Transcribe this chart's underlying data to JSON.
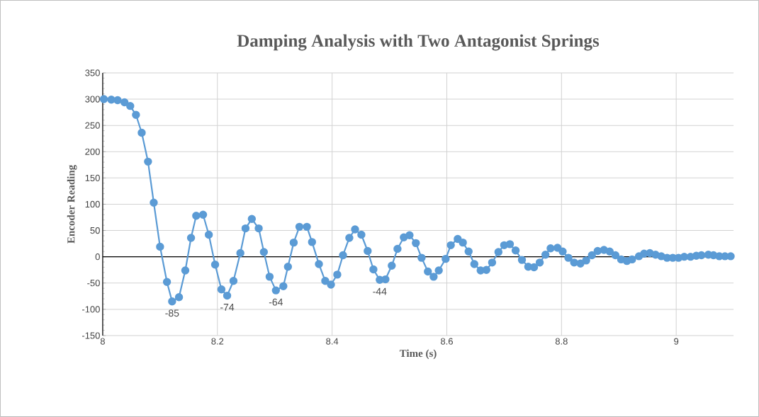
{
  "chart_data": {
    "type": "line",
    "title": "Damping Analysis with Two Antagonist Springs",
    "xlabel": "Time (s)",
    "ylabel": "Encoder Reading",
    "xlim": [
      8,
      9.1
    ],
    "xticks": [
      8,
      8.2,
      8.4,
      8.6,
      8.8,
      9
    ],
    "ylim": [
      -150,
      350
    ],
    "yticks": [
      -150,
      -100,
      -50,
      0,
      50,
      100,
      150,
      200,
      250,
      300,
      350
    ],
    "grid": true,
    "marker": "circle",
    "line_style": "solid",
    "series": [
      {
        "color": "#5b9bd5",
        "x": [
          8.002,
          8.015,
          8.026,
          8.038,
          8.048,
          8.058,
          8.068,
          8.079,
          8.089,
          8.1,
          8.112,
          8.121,
          8.133,
          8.144,
          8.154,
          8.163,
          8.175,
          8.185,
          8.196,
          8.207,
          8.217,
          8.228,
          8.24,
          8.249,
          8.26,
          8.272,
          8.281,
          8.291,
          8.302,
          8.315,
          8.323,
          8.333,
          8.343,
          8.356,
          8.365,
          8.377,
          8.388,
          8.398,
          8.409,
          8.419,
          8.43,
          8.44,
          8.451,
          8.462,
          8.472,
          8.483,
          8.493,
          8.504,
          8.514,
          8.525,
          8.535,
          8.546,
          8.556,
          8.567,
          8.577,
          8.586,
          8.598,
          8.607,
          8.619,
          8.628,
          8.638,
          8.648,
          8.659,
          8.669,
          8.679,
          8.69,
          8.7,
          8.71,
          8.72,
          8.731,
          8.742,
          8.752,
          8.762,
          8.772,
          8.781,
          8.793,
          8.802,
          8.812,
          8.822,
          8.833,
          8.843,
          8.853,
          8.863,
          8.874,
          8.884,
          8.894,
          8.904,
          8.914,
          8.923,
          8.935,
          8.944,
          8.954,
          8.964,
          8.974,
          8.984,
          8.994,
          9.004,
          9.014,
          9.025,
          9.035,
          9.044,
          9.056,
          9.065,
          9.075,
          9.085,
          9.095
        ],
        "values": [
          300,
          299,
          298,
          294,
          287,
          270,
          236,
          181,
          103,
          19,
          -48,
          -85,
          -77,
          -26,
          36,
          78,
          80,
          42,
          -15,
          -62,
          -74,
          -46,
          7,
          54,
          72,
          54,
          9,
          -38,
          -64,
          -56,
          -19,
          27,
          57,
          57,
          28,
          -14,
          -46,
          -53,
          -34,
          3,
          36,
          52,
          42,
          11,
          -24,
          -44,
          -43,
          -17,
          15,
          37,
          41,
          26,
          -2,
          -28,
          -38,
          -26,
          -4,
          22,
          34,
          27,
          10,
          -14,
          -26,
          -25,
          -11,
          9,
          22,
          24,
          12,
          -6,
          -19,
          -20,
          -11,
          4,
          16,
          17,
          10,
          -2,
          -11,
          -13,
          -7,
          3,
          11,
          13,
          10,
          3,
          -5,
          -8,
          -5,
          1,
          6,
          7,
          4,
          1,
          -2,
          -2,
          -2,
          0,
          0,
          2,
          3,
          4,
          3,
          1,
          1,
          1
        ]
      }
    ],
    "annotations": [
      {
        "text": "-85",
        "x": 8.121,
        "y": -85
      },
      {
        "text": "-74",
        "x": 8.217,
        "y": -74
      },
      {
        "text": "-64",
        "x": 8.302,
        "y": -64
      },
      {
        "text": "-44",
        "x": 8.483,
        "y": -44
      }
    ]
  }
}
